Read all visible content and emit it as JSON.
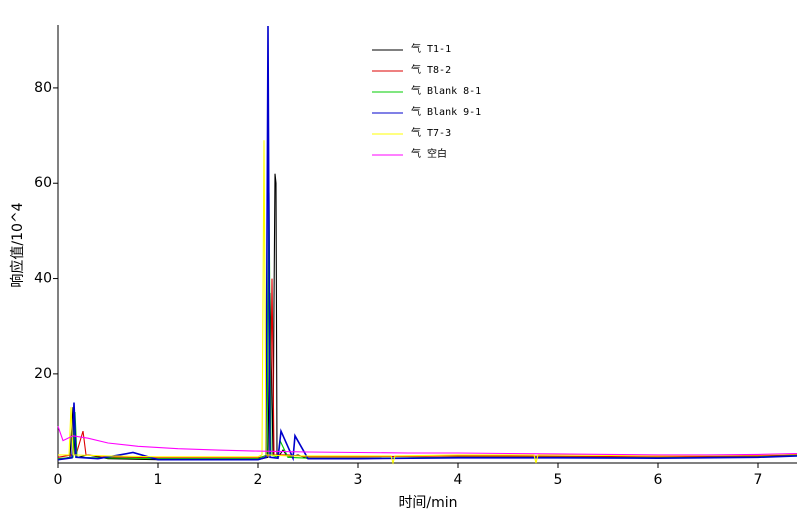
{
  "chart_data": {
    "type": "line",
    "x_label": "时间/min",
    "y_label": "响应值/10^4",
    "xlim": [
      0,
      7.39
    ],
    "ylim": [
      1.3,
      93.2
    ],
    "xticks": [
      0,
      1,
      2,
      3,
      4,
      5,
      6,
      7
    ],
    "yticks": [
      20,
      40,
      60,
      80
    ],
    "series": [
      {
        "name": "气 T1-1",
        "color": "#000000",
        "x": [
          0,
          0.12,
          0.15,
          0.17,
          0.2,
          0.3,
          0.5,
          1,
          1.5,
          2.0,
          2.1,
          2.12,
          2.15,
          2.16,
          2.17,
          2.18,
          2.19,
          2.2,
          2.25,
          2.3,
          2.4,
          2.5,
          3,
          4,
          5,
          6,
          7,
          7.39
        ],
        "values": [
          2,
          2.5,
          13,
          3,
          2.5,
          3,
          2.2,
          2,
          2,
          2,
          2.5,
          37,
          3,
          35,
          62,
          60,
          3,
          2.5,
          4,
          2.5,
          3,
          2.2,
          2.2,
          2.5,
          2.5,
          2.4,
          2.6,
          3
        ]
      },
      {
        "name": "气 T8-2",
        "color": "#dd0000",
        "x": [
          0,
          0.14,
          0.16,
          0.18,
          0.25,
          0.28,
          0.5,
          1,
          1.5,
          2.0,
          2.12,
          2.14,
          2.16,
          2.3,
          2.5,
          3,
          4,
          5,
          6,
          7,
          7.39
        ],
        "values": [
          2.5,
          3,
          12,
          3,
          8,
          3,
          2.6,
          2.4,
          2.4,
          2.4,
          3,
          40,
          3,
          3,
          2.6,
          2.6,
          2.8,
          2.7,
          2.6,
          2.8,
          3
        ]
      },
      {
        "name": "气 Blank 8-1",
        "color": "#00cc00",
        "x": [
          0,
          0.15,
          0.17,
          0.19,
          0.4,
          1,
          1.5,
          2.0,
          2.09,
          2.11,
          2.13,
          2.2,
          2.22,
          2.3,
          2.5,
          3,
          4,
          5,
          6,
          7,
          7.39
        ],
        "values": [
          2.2,
          2.5,
          12,
          2.5,
          2.4,
          2.2,
          2.2,
          2.2,
          3,
          58,
          3,
          2.5,
          6,
          2.5,
          2.3,
          2.3,
          2.5,
          2.5,
          2.4,
          2.6,
          2.9
        ]
      },
      {
        "name": "气 Blank 9-1",
        "color": "#0000cc",
        "x": [
          0,
          0.14,
          0.16,
          0.18,
          0.4,
          0.75,
          1,
          1.5,
          2.0,
          2.08,
          2.1,
          2.12,
          2.2,
          2.23,
          2.35,
          2.37,
          2.5,
          3,
          4,
          5,
          6,
          7,
          7.39
        ],
        "values": [
          2,
          2.4,
          14,
          2.5,
          2.2,
          3.5,
          2,
          2,
          2,
          2.5,
          93,
          2.5,
          2.3,
          8,
          2.3,
          7,
          2.2,
          2.2,
          2.4,
          2.4,
          2.3,
          2.5,
          2.8
        ]
      },
      {
        "name": "气 T7-3",
        "color": "#ffff00",
        "x": [
          0,
          0.11,
          0.13,
          0.15,
          0.5,
          1,
          1.5,
          2.0,
          2.04,
          2.06,
          2.08,
          2.3,
          3,
          3.33,
          3.35,
          3.37,
          4,
          4.76,
          4.78,
          4.8,
          5,
          6,
          7,
          7.39
        ],
        "values": [
          3,
          3,
          13,
          3,
          2.8,
          2.6,
          2.6,
          2.6,
          3,
          69,
          3,
          2.8,
          2.8,
          2.8,
          1.3,
          2.8,
          3,
          3,
          1.3,
          3,
          3,
          2.8,
          3,
          3.2
        ]
      },
      {
        "name": "气 空白",
        "color": "#ff00ff",
        "x": [
          0,
          0.05,
          0.15,
          0.3,
          0.5,
          0.8,
          1.2,
          1.6,
          2.0,
          2.5,
          3,
          3.5,
          4,
          4.5,
          5,
          5.5,
          6,
          6.5,
          7,
          7.39
        ],
        "values": [
          9,
          6,
          7,
          6.5,
          5.5,
          4.8,
          4.3,
          4,
          3.8,
          3.6,
          3.5,
          3.4,
          3.4,
          3.3,
          3.2,
          3.1,
          3,
          3,
          3.1,
          3.3
        ]
      }
    ]
  }
}
